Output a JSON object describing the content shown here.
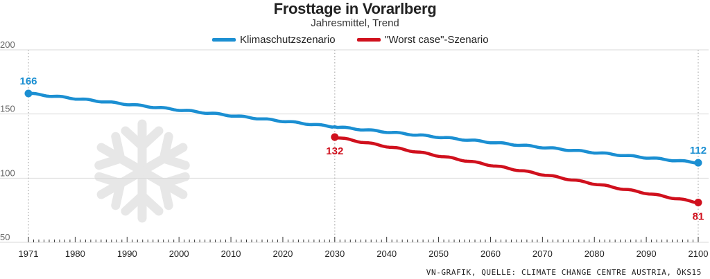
{
  "chart_data": {
    "type": "line",
    "title": "Frosttage in Vorarlberg",
    "subtitle": "Jahresmittel, Trend",
    "xlim": [
      1971,
      2100
    ],
    "ylim": [
      50,
      200
    ],
    "y_ticks": [
      200,
      150,
      100,
      50
    ],
    "x_ticks": [
      1971,
      1980,
      1990,
      2000,
      2010,
      2020,
      2030,
      2040,
      2050,
      2060,
      2070,
      2080,
      2090,
      2100
    ],
    "x_dotted_lines": [
      1971,
      2030,
      2100
    ],
    "series": [
      {
        "name": "Klimaschutzszenario",
        "color": "#1b8fd2",
        "x": [
          1971,
          2030,
          2100
        ],
        "values": [
          166,
          140,
          112
        ]
      },
      {
        "name": "\"Worst case\"-Szenario",
        "color": "#d0101d",
        "x": [
          2030,
          2100
        ],
        "values": [
          132,
          81
        ]
      }
    ],
    "data_labels": [
      {
        "text": "166",
        "series": 0,
        "year": 1971,
        "value": 166,
        "color": "#1b8fd2",
        "pos": "above"
      },
      {
        "text": "112",
        "series": 0,
        "year": 2100,
        "value": 112,
        "color": "#1b8fd2",
        "pos": "above"
      },
      {
        "text": "132",
        "series": 1,
        "year": 2030,
        "value": 132,
        "color": "#d0101d",
        "pos": "below"
      },
      {
        "text": "81",
        "series": 1,
        "year": 2100,
        "value": 81,
        "color": "#d0101d",
        "pos": "below"
      }
    ],
    "decoration_icon": "snowflake-icon"
  },
  "source": "VN-GRAFIK, QUELLE: CLIMATE CHANGE CENTRE AUSTRIA, ÖKS15"
}
